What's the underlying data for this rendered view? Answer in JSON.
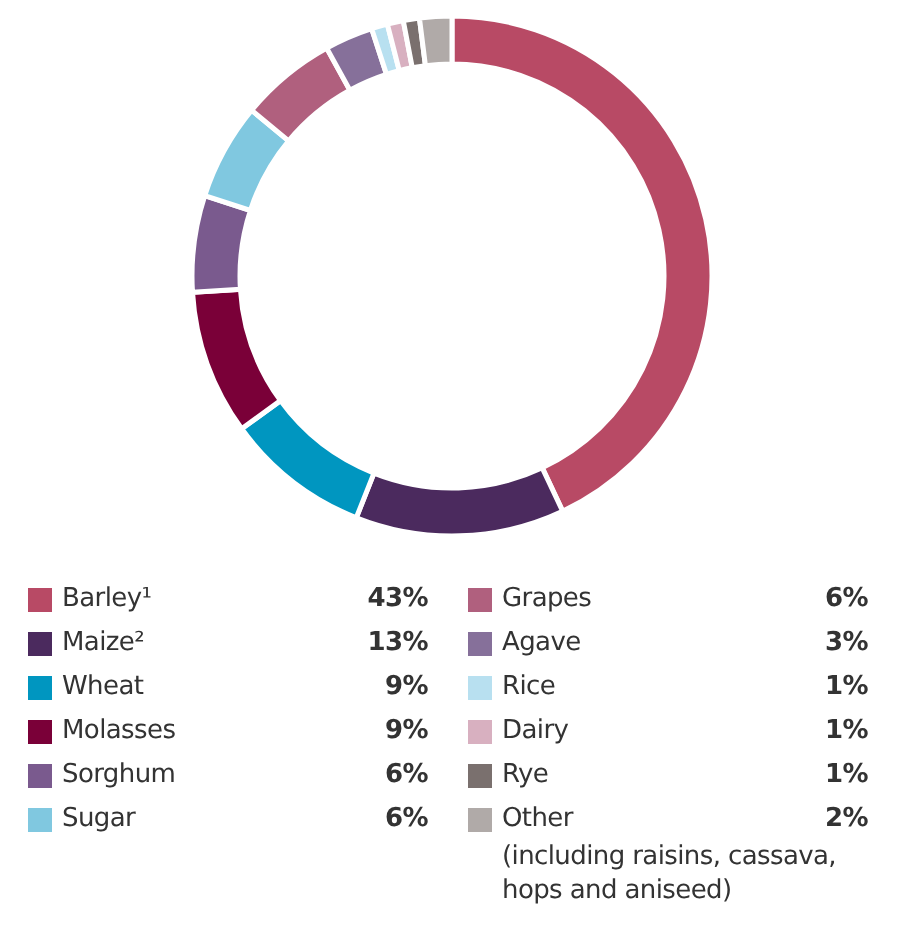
{
  "chart_data": {
    "type": "donut",
    "categories": [
      "Barley¹",
      "Maize²",
      "Wheat",
      "Molasses",
      "Sorghum",
      "Sugar",
      "Grapes",
      "Agave",
      "Rice",
      "Dairy",
      "Rye",
      "Other"
    ],
    "values": [
      43,
      13,
      9,
      9,
      6,
      6,
      6,
      3,
      1,
      1,
      1,
      2
    ],
    "value_labels": [
      "43%",
      "13%",
      "9%",
      "9%",
      "6%",
      "6%",
      "6%",
      "3%",
      "1%",
      "1%",
      "1%",
      "2%"
    ],
    "colors": [
      "#b84a65",
      "#4b2a5e",
      "#0096c0",
      "#7a0038",
      "#7a5a8e",
      "#80c8e0",
      "#b0607e",
      "#86709a",
      "#b8e0f0",
      "#d8b0c0",
      "#7a706e",
      "#b0aaa8"
    ],
    "legend": "bottom",
    "annotations": [
      "(including raisins, cassava, hops and aniseed)"
    ]
  }
}
